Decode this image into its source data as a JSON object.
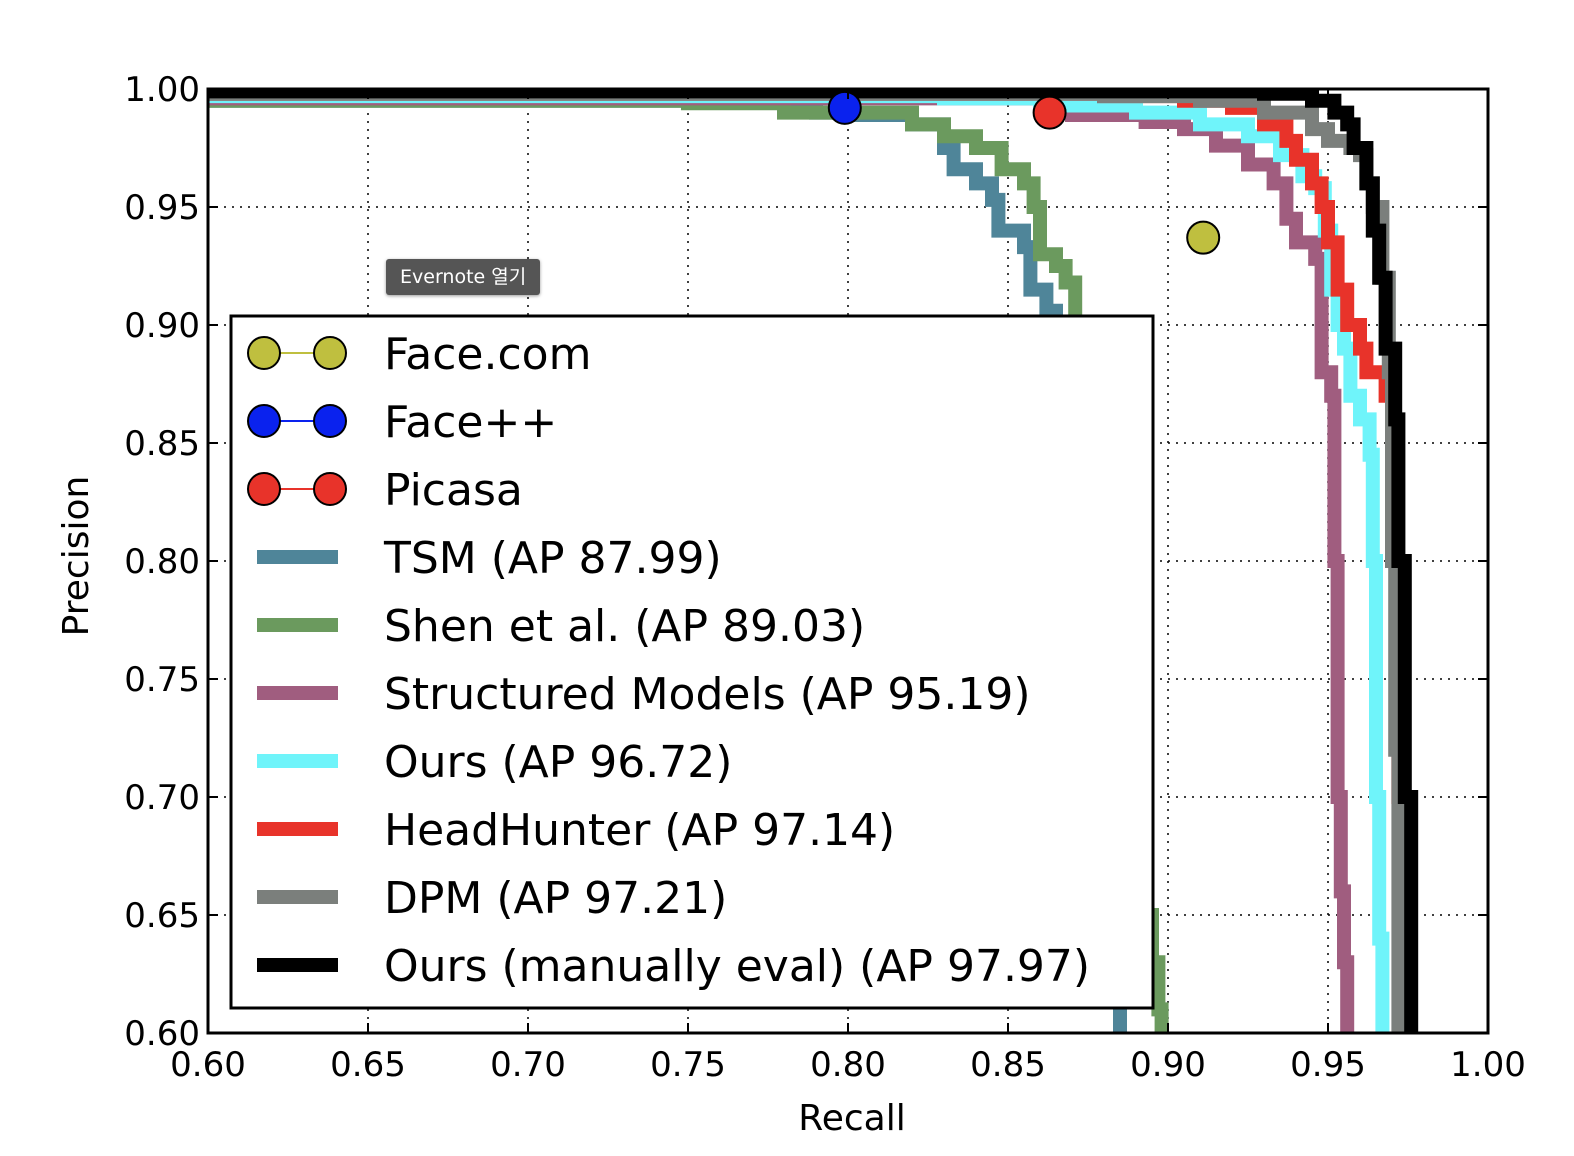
{
  "tooltip": {
    "text": "Evernote 열기"
  },
  "chart_data": {
    "type": "line",
    "title": "",
    "xlabel": "Recall",
    "ylabel": "Precision",
    "xlim": [
      0.6,
      1.0
    ],
    "ylim": [
      0.6,
      1.0
    ],
    "grid": true,
    "legend_position": "lower-left",
    "xticks": [
      "0.60",
      "0.65",
      "0.70",
      "0.75",
      "0.80",
      "0.85",
      "0.90",
      "0.95",
      "1.00"
    ],
    "yticks": [
      "0.60",
      "0.65",
      "0.70",
      "0.75",
      "0.80",
      "0.85",
      "0.90",
      "0.95",
      "1.00"
    ],
    "points": [
      {
        "name": "Face.com",
        "color": "#bfbf3f",
        "x": 0.911,
        "y": 0.937
      },
      {
        "name": "Face++",
        "color": "#0a22ee",
        "x": 0.799,
        "y": 0.992
      },
      {
        "name": "Picasa",
        "color": "#e8332a",
        "x": 0.863,
        "y": 0.99
      }
    ],
    "series": [
      {
        "name": "TSM (AP 87.99)",
        "color": "#4f8599",
        "points": [
          [
            0.6,
            0.995
          ],
          [
            0.69,
            0.995
          ],
          [
            0.79,
            0.99
          ],
          [
            0.8,
            0.989
          ],
          [
            0.82,
            0.985
          ],
          [
            0.825,
            0.985
          ],
          [
            0.83,
            0.975
          ],
          [
            0.833,
            0.966
          ],
          [
            0.84,
            0.96
          ],
          [
            0.845,
            0.953
          ],
          [
            0.847,
            0.94
          ],
          [
            0.855,
            0.933
          ],
          [
            0.857,
            0.915
          ],
          [
            0.862,
            0.906
          ],
          [
            0.865,
            0.87
          ],
          [
            0.868,
            0.857
          ],
          [
            0.872,
            0.847
          ],
          [
            0.872,
            0.79
          ],
          [
            0.876,
            0.79
          ],
          [
            0.88,
            0.767
          ],
          [
            0.882,
            0.75
          ],
          [
            0.882,
            0.7
          ],
          [
            0.884,
            0.66
          ],
          [
            0.885,
            0.6
          ]
        ]
      },
      {
        "name": "Shen et al. (AP 89.03)",
        "color": "#6b9a5e",
        "points": [
          [
            0.6,
            0.995
          ],
          [
            0.7,
            0.995
          ],
          [
            0.75,
            0.994
          ],
          [
            0.78,
            0.99
          ],
          [
            0.82,
            0.985
          ],
          [
            0.83,
            0.98
          ],
          [
            0.84,
            0.975
          ],
          [
            0.848,
            0.966
          ],
          [
            0.855,
            0.96
          ],
          [
            0.858,
            0.95
          ],
          [
            0.86,
            0.93
          ],
          [
            0.865,
            0.925
          ],
          [
            0.868,
            0.918
          ],
          [
            0.871,
            0.9
          ],
          [
            0.874,
            0.895
          ],
          [
            0.876,
            0.84
          ],
          [
            0.878,
            0.8
          ],
          [
            0.881,
            0.78
          ],
          [
            0.884,
            0.76
          ],
          [
            0.886,
            0.74
          ],
          [
            0.89,
            0.725
          ],
          [
            0.892,
            0.68
          ],
          [
            0.893,
            0.65
          ],
          [
            0.895,
            0.63
          ],
          [
            0.897,
            0.61
          ],
          [
            0.898,
            0.6
          ]
        ]
      },
      {
        "name": "Structured Models (AP 95.19)",
        "color": "#a05d7f",
        "points": [
          [
            0.6,
            0.996
          ],
          [
            0.86,
            0.992
          ],
          [
            0.87,
            0.989
          ],
          [
            0.88,
            0.989
          ],
          [
            0.893,
            0.986
          ],
          [
            0.905,
            0.983
          ],
          [
            0.915,
            0.976
          ],
          [
            0.925,
            0.968
          ],
          [
            0.933,
            0.96
          ],
          [
            0.937,
            0.945
          ],
          [
            0.94,
            0.935
          ],
          [
            0.946,
            0.928
          ],
          [
            0.948,
            0.88
          ],
          [
            0.951,
            0.87
          ],
          [
            0.952,
            0.8
          ],
          [
            0.953,
            0.7
          ],
          [
            0.954,
            0.66
          ],
          [
            0.955,
            0.63
          ],
          [
            0.956,
            0.6
          ]
        ]
      },
      {
        "name": "Ours (AP 96.72)",
        "color": "#6ff4fa",
        "points": [
          [
            0.6,
            0.997
          ],
          [
            0.8,
            0.997
          ],
          [
            0.83,
            0.996
          ],
          [
            0.86,
            0.993
          ],
          [
            0.89,
            0.99
          ],
          [
            0.91,
            0.985
          ],
          [
            0.925,
            0.98
          ],
          [
            0.935,
            0.972
          ],
          [
            0.942,
            0.963
          ],
          [
            0.946,
            0.958
          ],
          [
            0.949,
            0.94
          ],
          [
            0.951,
            0.915
          ],
          [
            0.953,
            0.9
          ],
          [
            0.955,
            0.89
          ],
          [
            0.957,
            0.87
          ],
          [
            0.96,
            0.86
          ],
          [
            0.963,
            0.845
          ],
          [
            0.964,
            0.8
          ],
          [
            0.965,
            0.7
          ],
          [
            0.966,
            0.64
          ],
          [
            0.967,
            0.6
          ]
        ]
      },
      {
        "name": "HeadHunter (AP 97.14)",
        "color": "#e8332a",
        "points": [
          [
            0.6,
            0.998
          ],
          [
            0.85,
            0.998
          ],
          [
            0.88,
            0.997
          ],
          [
            0.905,
            0.995
          ],
          [
            0.92,
            0.992
          ],
          [
            0.93,
            0.985
          ],
          [
            0.937,
            0.978
          ],
          [
            0.94,
            0.97
          ],
          [
            0.945,
            0.96
          ],
          [
            0.948,
            0.95
          ],
          [
            0.95,
            0.935
          ],
          [
            0.953,
            0.915
          ],
          [
            0.956,
            0.9
          ],
          [
            0.96,
            0.89
          ],
          [
            0.962,
            0.88
          ],
          [
            0.968,
            0.87
          ],
          [
            0.97,
            0.8
          ],
          [
            0.972,
            0.7
          ],
          [
            0.974,
            0.62
          ],
          [
            0.975,
            0.6
          ]
        ]
      },
      {
        "name": "DPM (AP 97.21)",
        "color": "#7b7f7c",
        "points": [
          [
            0.6,
            0.998
          ],
          [
            0.88,
            0.997
          ],
          [
            0.91,
            0.995
          ],
          [
            0.93,
            0.99
          ],
          [
            0.945,
            0.983
          ],
          [
            0.95,
            0.978
          ],
          [
            0.957,
            0.975
          ],
          [
            0.96,
            0.972
          ],
          [
            0.962,
            0.96
          ],
          [
            0.964,
            0.95
          ],
          [
            0.967,
            0.92
          ],
          [
            0.969,
            0.88
          ],
          [
            0.97,
            0.8
          ],
          [
            0.971,
            0.72
          ],
          [
            0.972,
            0.6
          ]
        ]
      },
      {
        "name": "Ours (manually eval) (AP 97.97)",
        "color": "#000000",
        "points": [
          [
            0.6,
            0.999
          ],
          [
            0.9,
            0.999
          ],
          [
            0.93,
            0.998
          ],
          [
            0.945,
            0.995
          ],
          [
            0.952,
            0.99
          ],
          [
            0.956,
            0.985
          ],
          [
            0.958,
            0.975
          ],
          [
            0.962,
            0.96
          ],
          [
            0.964,
            0.94
          ],
          [
            0.966,
            0.92
          ],
          [
            0.968,
            0.89
          ],
          [
            0.971,
            0.86
          ],
          [
            0.972,
            0.8
          ],
          [
            0.974,
            0.7
          ],
          [
            0.976,
            0.6
          ]
        ]
      }
    ]
  }
}
